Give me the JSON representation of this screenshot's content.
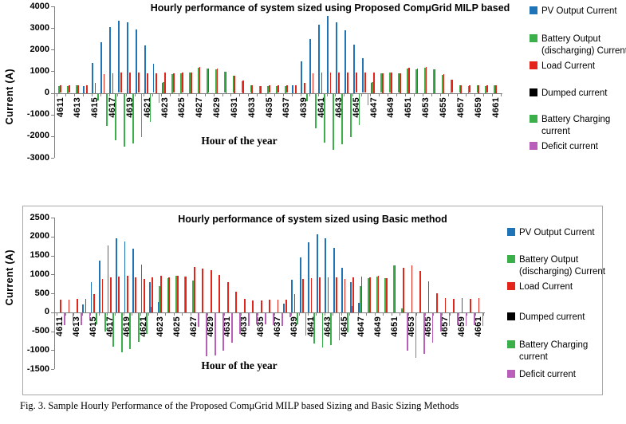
{
  "figure": {
    "caption": "Fig. 3.  Sample Hourly Performance of the Proposed ComμGrid MILP based Sizing and Basic Sizing Methods"
  },
  "colors": {
    "pv": "#1F74B8",
    "battery_discharge": "#3BB04A",
    "load": "#E2241B",
    "dumped": "#000000",
    "battery_charge": "#3BB04A",
    "deficit": "#B95EB9",
    "axis": "#808080",
    "border": "#A8A8A8"
  },
  "chart_data": [
    {
      "type": "bar",
      "title": "Hourly performance of system sized using  Proposed ComμGrid MILP based",
      "xlabel": "Hour of the year",
      "ylabel": "Current (A)",
      "ylim": [
        -3000,
        4000
      ],
      "yticks": [
        4000,
        3000,
        2000,
        1000,
        0,
        -1000,
        -2000,
        -3000
      ],
      "x_axis": {
        "start": 4611,
        "end": 4661,
        "tick_labels": [
          "4611",
          "4613",
          "4615",
          "4617",
          "4619",
          "4621",
          "4623",
          "4625",
          "4627",
          "4629",
          "4631",
          "4633",
          "4635",
          "4637",
          "4639",
          "4641",
          "4643",
          "4645",
          "4647",
          "4649",
          "4651",
          "4653",
          "4655",
          "4657",
          "4659",
          "4661"
        ]
      },
      "legend_position": "right",
      "grid": false,
      "legend": [
        {
          "key": "pv-output",
          "label": "PV Output Current",
          "lines": [
            "PV Output Current"
          ],
          "color": "#1F74B8"
        },
        {
          "key": "battery-discharge",
          "label": "Battery Output (discharging) Current",
          "lines": [
            "Battery Output",
            "(discharging) Current"
          ],
          "color": "#3BB04A"
        },
        {
          "key": "load",
          "label": "Load Current",
          "lines": [
            "Load Current"
          ],
          "color": "#E2241B"
        },
        {
          "key": "dumped",
          "label": "Dumped current",
          "lines": [
            "Dumped current"
          ],
          "color": "#000000"
        },
        {
          "key": "battery-charge",
          "label": "Battery Charging current",
          "lines": [
            "Battery Charging",
            "current"
          ],
          "color": "#3BB04A"
        },
        {
          "key": "deficit",
          "label": "Deficit current",
          "lines": [
            "Deficit current"
          ],
          "color": "#B95EB9"
        }
      ],
      "series": [
        {
          "key": "pv-output",
          "name": "PV Output Current",
          "color": "#1F74B8",
          "values": [
            0,
            0,
            0,
            320,
            1370,
            2350,
            3050,
            3350,
            3250,
            2920,
            2180,
            1350,
            450,
            0,
            0,
            0,
            0,
            0,
            0,
            0,
            0,
            0,
            0,
            0,
            0,
            0,
            0,
            370,
            1450,
            2500,
            3150,
            3550,
            3250,
            2900,
            2250,
            1600,
            450,
            0,
            0,
            0,
            0,
            0,
            0,
            0,
            0,
            0,
            0,
            0,
            0,
            0,
            0
          ]
        },
        {
          "key": "battery-discharge",
          "name": "Battery Output (discharging) Current",
          "color": "#3BB04A",
          "values": [
            330,
            330,
            350,
            0,
            0,
            0,
            0,
            0,
            0,
            0,
            0,
            0,
            500,
            870,
            920,
            950,
            1150,
            1120,
            1100,
            970,
            790,
            550,
            340,
            310,
            330,
            330,
            330,
            0,
            0,
            0,
            0,
            0,
            0,
            0,
            0,
            0,
            500,
            900,
            930,
            900,
            1130,
            1100,
            1180,
            1080,
            850,
            600,
            340,
            330,
            340,
            330,
            350
          ]
        },
        {
          "key": "load",
          "name": "Load Current",
          "color": "#E2241B",
          "values": [
            340,
            340,
            360,
            350,
            480,
            880,
            920,
            930,
            950,
            930,
            890,
            920,
            960,
            900,
            930,
            960,
            1190,
            1140,
            1120,
            990,
            810,
            560,
            350,
            320,
            340,
            340,
            340,
            350,
            480,
            890,
            950,
            960,
            960,
            940,
            930,
            930,
            960,
            920,
            950,
            910,
            1150,
            1120,
            1200,
            1100,
            870,
            620,
            350,
            340,
            350,
            340,
            360
          ]
        },
        {
          "key": "dumped",
          "name": "Dumped current",
          "color": "#000000",
          "values": [
            0,
            0,
            0,
            0,
            0,
            0,
            0,
            0,
            0,
            0,
            0,
            0,
            0,
            0,
            0,
            0,
            0,
            0,
            0,
            0,
            0,
            0,
            0,
            0,
            0,
            0,
            0,
            0,
            0,
            0,
            0,
            0,
            0,
            0,
            0,
            0,
            0,
            0,
            0,
            0,
            0,
            0,
            0,
            0,
            0,
            0,
            0,
            0,
            0,
            0,
            0
          ]
        },
        {
          "key": "battery-charge",
          "name": "Battery Charging current",
          "color": "#3BB04A",
          "values": [
            0,
            0,
            0,
            0,
            -300,
            -1500,
            -2150,
            -2450,
            -2300,
            -2000,
            -1300,
            -430,
            0,
            0,
            0,
            0,
            0,
            0,
            0,
            0,
            0,
            0,
            0,
            0,
            0,
            0,
            0,
            0,
            -350,
            -1600,
            -2250,
            -2600,
            -2350,
            -2000,
            -1450,
            -550,
            0,
            0,
            0,
            0,
            0,
            0,
            0,
            0,
            0,
            0,
            0,
            0,
            0,
            0,
            0
          ]
        },
        {
          "key": "deficit",
          "name": "Deficit current",
          "color": "#B95EB9",
          "values": [
            0,
            0,
            0,
            0,
            0,
            0,
            0,
            0,
            0,
            0,
            0,
            0,
            0,
            0,
            0,
            0,
            0,
            0,
            0,
            0,
            0,
            0,
            0,
            0,
            0,
            0,
            0,
            0,
            0,
            0,
            0,
            0,
            0,
            0,
            0,
            0,
            0,
            0,
            0,
            0,
            0,
            0,
            0,
            0,
            0,
            0,
            0,
            0,
            0,
            0,
            0
          ]
        }
      ]
    },
    {
      "type": "bar",
      "title": "Hourly performance of system sized using Basic method",
      "xlabel": "Hour of the year",
      "ylabel": "Current (A)",
      "ylim": [
        -1500,
        2500
      ],
      "yticks": [
        2500,
        2000,
        1500,
        1000,
        500,
        0,
        -500,
        -1000,
        -1500
      ],
      "x_axis": {
        "start": 4611,
        "end": 4661,
        "tick_labels": [
          "4611",
          "4613",
          "4615",
          "4617",
          "4619",
          "4621",
          "4623",
          "4625",
          "4627",
          "4629",
          "4631",
          "4633",
          "4635",
          "4637",
          "4639",
          "4641",
          "4643",
          "4645",
          "4647",
          "4649",
          "4651",
          "4653",
          "4655",
          "4657",
          "4659",
          "4661"
        ]
      },
      "legend_position": "right",
      "grid": false,
      "legend": [
        {
          "key": "pv-output",
          "label": "PV Output Current",
          "lines": [
            "PV Output Current"
          ],
          "color": "#1F74B8"
        },
        {
          "key": "battery-discharge",
          "label": "Battery Output (discharging) Current",
          "lines": [
            "Battery Output",
            "(discharging) Current"
          ],
          "color": "#3BB04A"
        },
        {
          "key": "load",
          "label": "Load Current",
          "lines": [
            "Load Current"
          ],
          "color": "#E2241B"
        },
        {
          "key": "dumped",
          "label": "Dumped current",
          "lines": [
            "Dumped current"
          ],
          "color": "#000000"
        },
        {
          "key": "battery-charge",
          "label": "Battery Charging current",
          "lines": [
            "Battery Charging",
            "current"
          ],
          "color": "#3BB04A"
        },
        {
          "key": "deficit",
          "label": "Deficit current",
          "lines": [
            "Deficit current"
          ],
          "color": "#B95EB9"
        }
      ],
      "series": [
        {
          "key": "pv-output",
          "name": "PV Output Current",
          "color": "#1F74B8",
          "values": [
            0,
            0,
            0,
            200,
            800,
            1370,
            1770,
            1960,
            1880,
            1690,
            1260,
            790,
            260,
            0,
            0,
            0,
            0,
            0,
            0,
            0,
            0,
            0,
            0,
            0,
            0,
            0,
            0,
            230,
            860,
            1440,
            1850,
            2050,
            1950,
            1700,
            1180,
            790,
            250,
            0,
            0,
            0,
            0,
            0,
            0,
            0,
            0,
            0,
            0,
            0,
            0,
            0,
            0
          ]
        },
        {
          "key": "battery-discharge",
          "name": "Battery Output (discharging) Current",
          "color": "#3BB04A",
          "values": [
            0,
            0,
            0,
            0,
            0,
            0,
            0,
            0,
            0,
            0,
            0,
            150,
            690,
            910,
            960,
            940,
            830,
            0,
            0,
            0,
            0,
            0,
            0,
            0,
            0,
            0,
            0,
            0,
            0,
            0,
            0,
            0,
            0,
            0,
            0,
            160,
            700,
            900,
            950,
            900,
            1230,
            100,
            0,
            0,
            0,
            0,
            0,
            0,
            0,
            0,
            0
          ]
        },
        {
          "key": "load",
          "name": "Load Current",
          "color": "#E2241B",
          "values": [
            330,
            330,
            350,
            350,
            490,
            880,
            920,
            940,
            960,
            920,
            880,
            930,
            960,
            920,
            970,
            950,
            1190,
            1150,
            1120,
            990,
            790,
            550,
            350,
            310,
            310,
            330,
            340,
            330,
            480,
            880,
            900,
            930,
            930,
            920,
            890,
            930,
            950,
            920,
            960,
            910,
            1230,
            1180,
            1230,
            1100,
            820,
            500,
            370,
            360,
            370,
            360,
            380
          ]
        },
        {
          "key": "dumped",
          "name": "Dumped current",
          "color": "#000000",
          "values": [
            0,
            0,
            0,
            0,
            0,
            0,
            0,
            0,
            0,
            0,
            0,
            0,
            0,
            0,
            0,
            0,
            0,
            0,
            0,
            0,
            0,
            0,
            0,
            0,
            0,
            0,
            0,
            0,
            0,
            0,
            0,
            0,
            0,
            0,
            0,
            0,
            0,
            0,
            0,
            0,
            0,
            0,
            0,
            0,
            0,
            0,
            0,
            0,
            0,
            0,
            0
          ]
        },
        {
          "key": "battery-charge",
          "name": "Battery Charging current",
          "color": "#3BB04A",
          "values": [
            0,
            0,
            0,
            0,
            -310,
            -480,
            -880,
            -1030,
            -950,
            -760,
            -550,
            0,
            0,
            0,
            0,
            0,
            0,
            0,
            0,
            0,
            0,
            0,
            0,
            0,
            0,
            0,
            0,
            0,
            -300,
            -600,
            -800,
            -900,
            -850,
            -720,
            -500,
            0,
            0,
            0,
            0,
            0,
            0,
            0,
            0,
            0,
            0,
            0,
            0,
            0,
            0,
            0,
            0
          ]
        },
        {
          "key": "deficit",
          "name": "Deficit current",
          "color": "#B95EB9",
          "values": [
            -330,
            -300,
            -320,
            -160,
            0,
            0,
            0,
            0,
            0,
            0,
            0,
            0,
            0,
            0,
            0,
            0,
            -360,
            -1150,
            -1120,
            -990,
            -790,
            -550,
            -350,
            -310,
            -310,
            -330,
            -340,
            -100,
            0,
            0,
            0,
            0,
            0,
            0,
            0,
            0,
            0,
            0,
            0,
            0,
            0,
            -1000,
            -1180,
            -1080,
            -780,
            -480,
            -340,
            -330,
            -340,
            -330,
            -350
          ]
        }
      ]
    }
  ]
}
